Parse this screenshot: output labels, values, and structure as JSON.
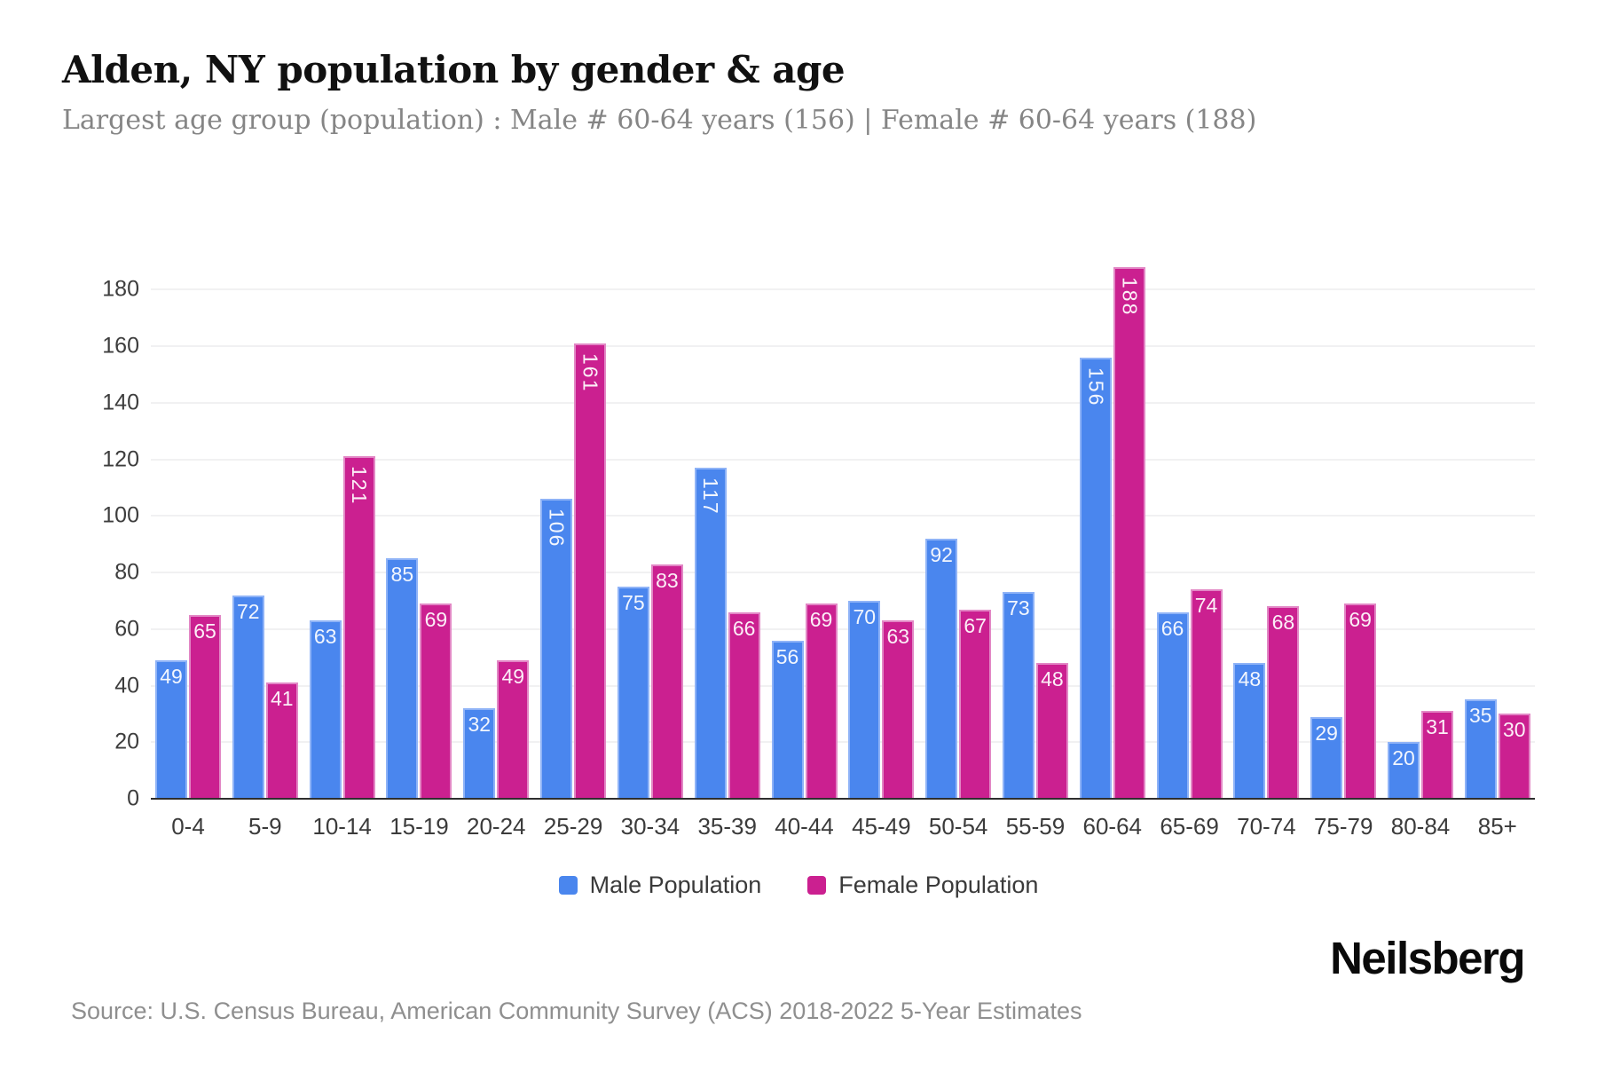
{
  "header": {
    "title": "Alden, NY population by gender & age",
    "subtitle": "Largest age group (population) : Male # 60-64 years (156) | Female # 60-64 years (188)"
  },
  "chart_data": {
    "type": "bar",
    "title": "Alden, NY population by gender & age",
    "categories": [
      "0-4",
      "5-9",
      "10-14",
      "15-19",
      "20-24",
      "25-29",
      "30-34",
      "35-39",
      "40-44",
      "45-49",
      "50-54",
      "55-59",
      "60-64",
      "65-69",
      "70-74",
      "75-79",
      "80-84",
      "85+"
    ],
    "series": [
      {
        "name": "Male Population",
        "color": "#4a86ee",
        "border_color": "#8fb3f7",
        "values": [
          49,
          72,
          63,
          85,
          32,
          106,
          75,
          117,
          56,
          70,
          92,
          73,
          156,
          66,
          48,
          29,
          20,
          35
        ]
      },
      {
        "name": "Female Population",
        "color": "#cb2090",
        "border_color": "#e287c5",
        "values": [
          65,
          41,
          121,
          69,
          49,
          161,
          83,
          66,
          69,
          63,
          67,
          48,
          188,
          74,
          68,
          69,
          31,
          30
        ]
      }
    ],
    "xlabel": "",
    "ylabel": "",
    "ylim": [
      0,
      204
    ],
    "yticks": [
      0,
      20,
      40,
      60,
      80,
      100,
      120,
      140,
      160,
      180
    ],
    "grid": "horizontal-light",
    "gridline_color": "#f1f1f2",
    "legend_position": "bottom",
    "value_label_style": "white labels inside top of bars, rotated 90deg when value >= 100"
  },
  "legend": {
    "items": [
      "Male Population",
      "Female Population"
    ]
  },
  "footer": {
    "source": "Source: U.S. Census Bureau, American Community Survey (ACS) 2018-2022 5-Year Estimates",
    "brand": "Neilsberg"
  }
}
